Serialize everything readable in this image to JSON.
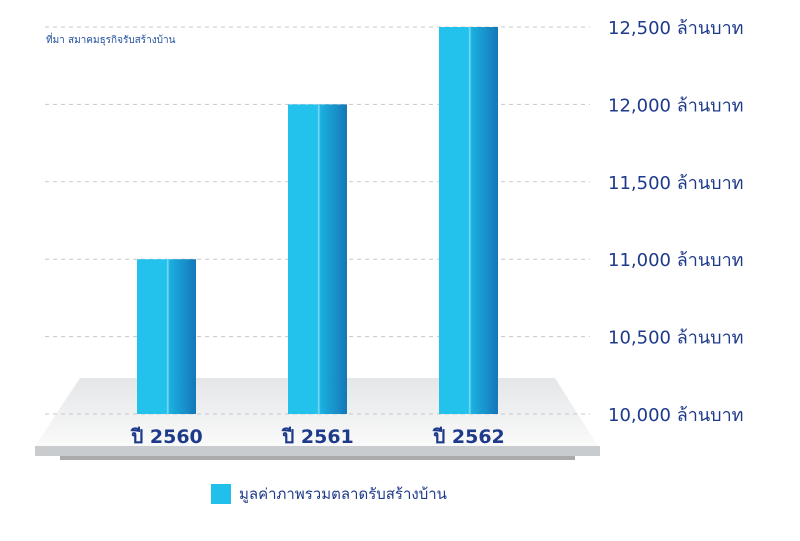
{
  "source_note": "ที่มา สมาคมธุรกิจรับสร้างบ้าน",
  "colors": {
    "bar": "#20c0ea",
    "bar_dark": "#1a7fc0",
    "text": "#1e3a8a"
  },
  "chart_data": {
    "type": "bar",
    "categories": [
      "ปี 2560",
      "ปี 2561",
      "ปี 2562"
    ],
    "series": [
      {
        "name": "มูลค่าภาพรวมตลาดรับสร้างบ้าน",
        "values": [
          11000,
          12000,
          12500
        ]
      }
    ],
    "ylim": [
      10000,
      12500
    ],
    "yticks": [
      10000,
      10500,
      11000,
      11500,
      12000,
      12500
    ],
    "ytick_labels": [
      "10,000 ล้านบาท",
      "10,500 ล้านบาท",
      "11,000 ล้านบาท",
      "11,500 ล้านบาท",
      "12,000 ล้านบาท",
      "12,500 ล้านบาท"
    ],
    "y_axis_position": "right",
    "grid": true,
    "legend": "bottom"
  }
}
